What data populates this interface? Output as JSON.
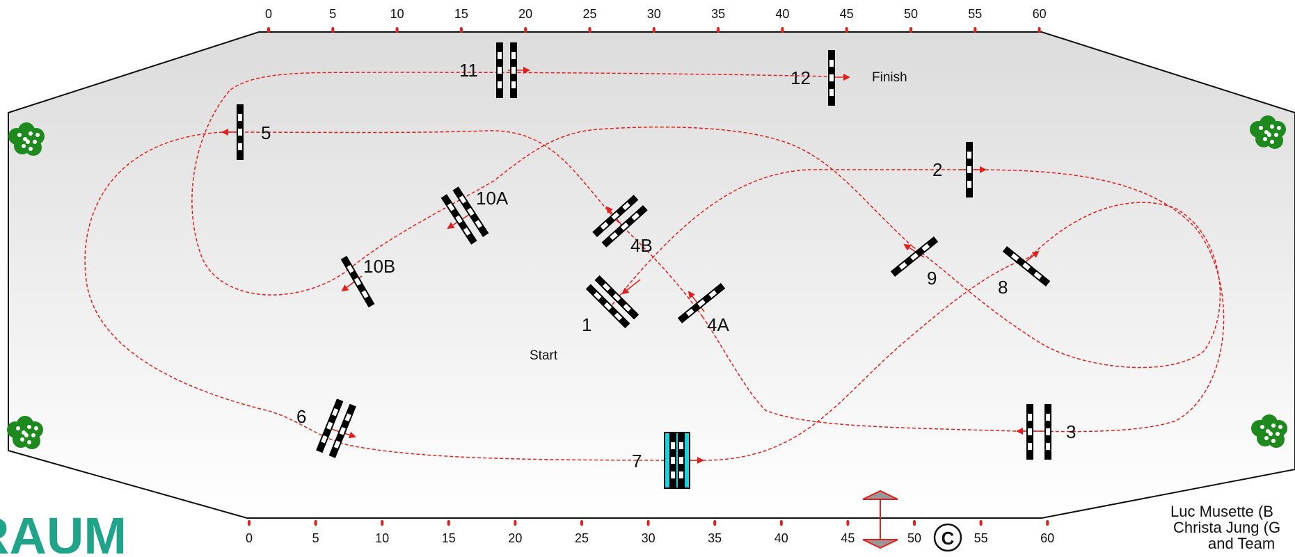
{
  "ruler_top": [
    "0",
    "5",
    "10",
    "15",
    "20",
    "25",
    "30",
    "35",
    "40",
    "45",
    "50",
    "55",
    "60"
  ],
  "ruler_bottom": [
    "0",
    "5",
    "10",
    "15",
    "20",
    "25",
    "30",
    "35",
    "40",
    "45",
    "50",
    "55",
    "60"
  ],
  "labels": {
    "start": "Start",
    "finish": "Finish",
    "obstacles": [
      "1",
      "2",
      "3",
      "4A",
      "4B",
      "5",
      "6",
      "7",
      "8",
      "9",
      "10A",
      "10B",
      "11",
      "12"
    ]
  },
  "logo": "RAUM",
  "copyright": "C",
  "credits": [
    "Luc Musette (B",
    "Christa Jung (G",
    "and Team"
  ],
  "colors": {
    "arena_gradient_top": "#dcdcdc",
    "arena_gradient_bottom": "#ffffff",
    "route": "#e0201c",
    "fence": "#111111",
    "water": "#1fd2e0",
    "shrub": "#1e8a1e",
    "logo": "#1fa389",
    "grey_marker": "#999999"
  }
}
